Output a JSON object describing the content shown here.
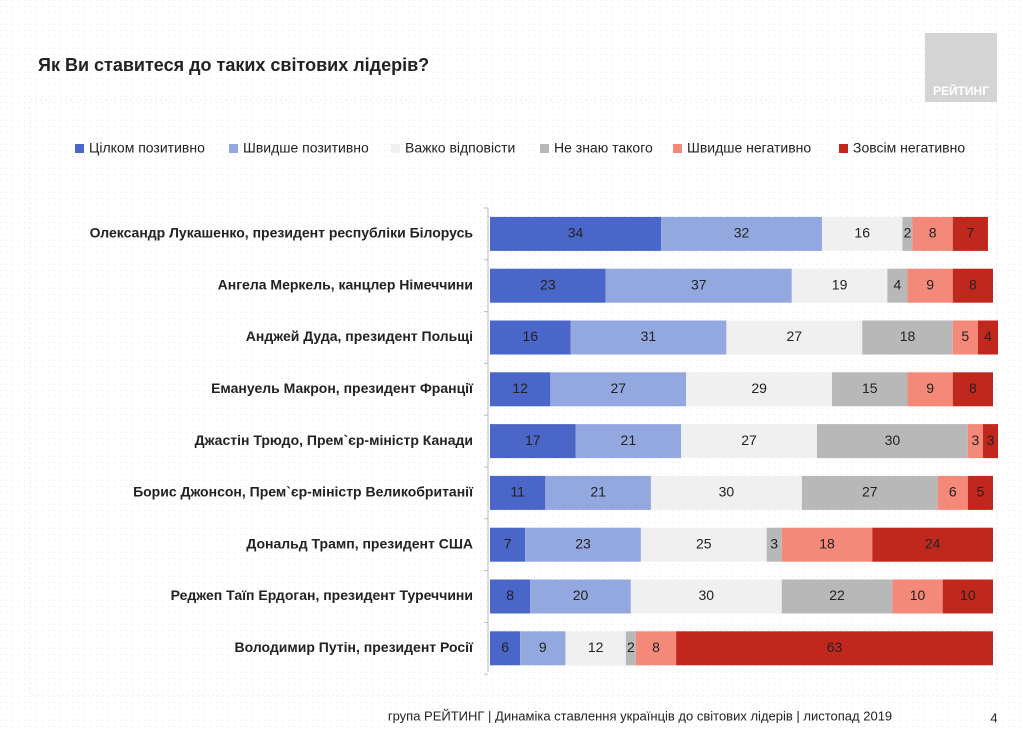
{
  "chart_data": {
    "type": "stacked-bar-horizontal",
    "title": "Як Ви ставитеся до таких світових лідерів?",
    "categories": [
      "Олександр Лукашенко, президент республіки Білорусь",
      "Ангела Меркель, канцлер Німеччини",
      "Анджей Дуда, президент Польщі",
      "Емануель Макрон, президент Франції",
      "Джастін Трюдо, Прем`єр-міністр Канади",
      "Борис Джонсон, Прем`єр-міністр Великобританії",
      "Дональд Трамп, президент США",
      "Реджеп Таїп Ердоган, президент Туреччини",
      "Володимир Путін, президент Росії"
    ],
    "series": [
      {
        "name": "Цілком позитивно",
        "color": "#4a66c8",
        "values": [
          34,
          23,
          16,
          12,
          17,
          11,
          7,
          8,
          6
        ]
      },
      {
        "name": "Швидше позитивно",
        "color": "#94a8e0",
        "values": [
          32,
          37,
          31,
          27,
          21,
          21,
          23,
          20,
          9
        ]
      },
      {
        "name": "Важко відповісти",
        "color": "#f0f0f0",
        "values": [
          16,
          19,
          27,
          29,
          27,
          30,
          25,
          30,
          12
        ]
      },
      {
        "name": "Не знаю такого",
        "color": "#b8b8b8",
        "values": [
          2,
          4,
          18,
          15,
          30,
          27,
          3,
          22,
          2
        ]
      },
      {
        "name": "Швидше негативно",
        "color": "#f4897a",
        "values": [
          8,
          9,
          5,
          9,
          3,
          6,
          18,
          10,
          8
        ]
      },
      {
        "name": "Зовсім негативно",
        "color": "#c0281e",
        "values": [
          7,
          8,
          4,
          8,
          3,
          5,
          24,
          10,
          63
        ]
      }
    ]
  },
  "slide": {
    "logo": "РЕЙТИНГ",
    "footer": "група РЕЙТИНГ | Динаміка ставлення українців до світових лідерів  | листопад 2019",
    "page_number": "4"
  }
}
